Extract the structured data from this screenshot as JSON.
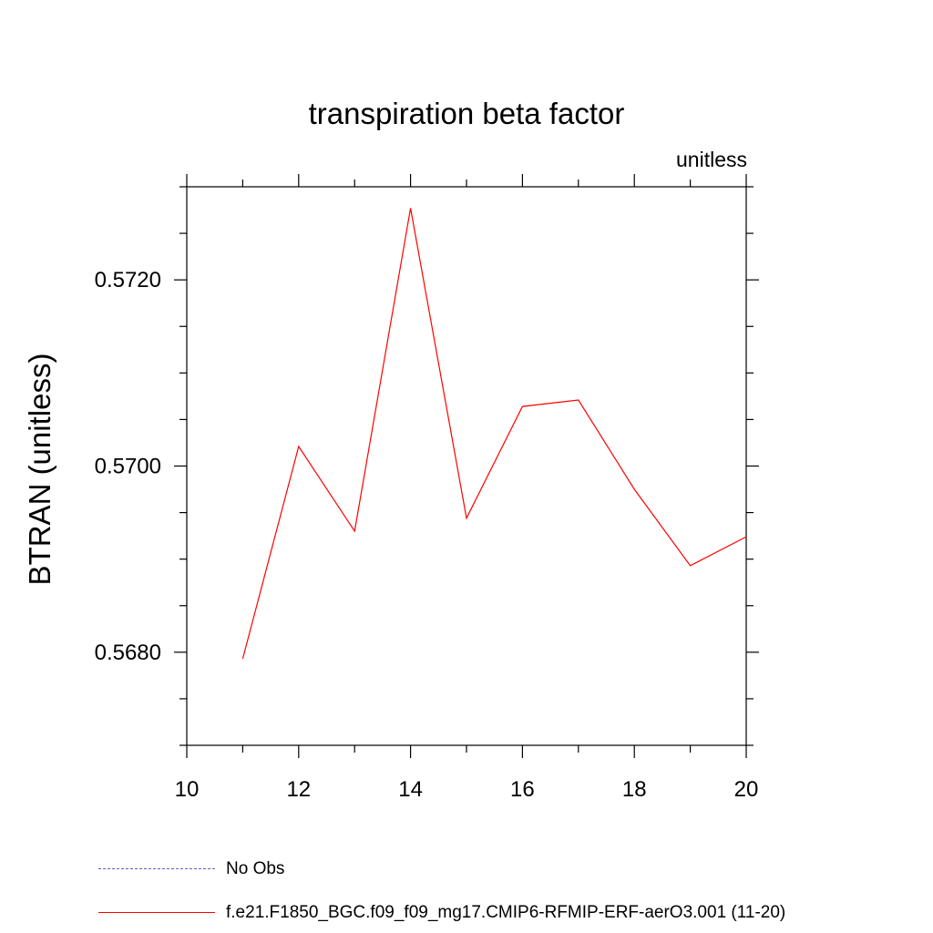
{
  "chart_data": {
    "type": "line",
    "title": "transpiration beta factor",
    "subtitle": "unitless",
    "ylabel": "BTRAN  (unitless)",
    "xlabel": "",
    "xlim": [
      10,
      20
    ],
    "ylim": [
      0.567,
      0.573
    ],
    "x_ticks": [
      10,
      12,
      14,
      16,
      18,
      20
    ],
    "y_ticks": [
      "0.5680",
      "0.5700",
      "0.5720"
    ],
    "y_tick_values": [
      0.568,
      0.57,
      0.572
    ],
    "grid": false,
    "legend_position": "bottom",
    "series": [
      {
        "name": "f.e21.F1850_BGC.f09_f09_mg17.CMIP6-RFMIP-ERF-aerO3.001 (11-20)",
        "color": "#ff0000",
        "x": [
          11,
          12,
          13,
          14,
          15,
          16,
          17,
          18,
          19,
          20
        ],
        "values": [
          0.56793,
          0.57021,
          0.5693,
          0.57277,
          0.56944,
          0.57064,
          0.57071,
          0.56975,
          0.56893,
          0.56924
        ]
      }
    ],
    "legend": [
      {
        "label": "No Obs",
        "color": "#6a5acd",
        "style": "dashed"
      },
      {
        "label": "f.e21.F1850_BGC.f09_f09_mg17.CMIP6-RFMIP-ERF-aerO3.001 (11-20)",
        "color": "#ff0000",
        "style": "solid"
      }
    ]
  }
}
